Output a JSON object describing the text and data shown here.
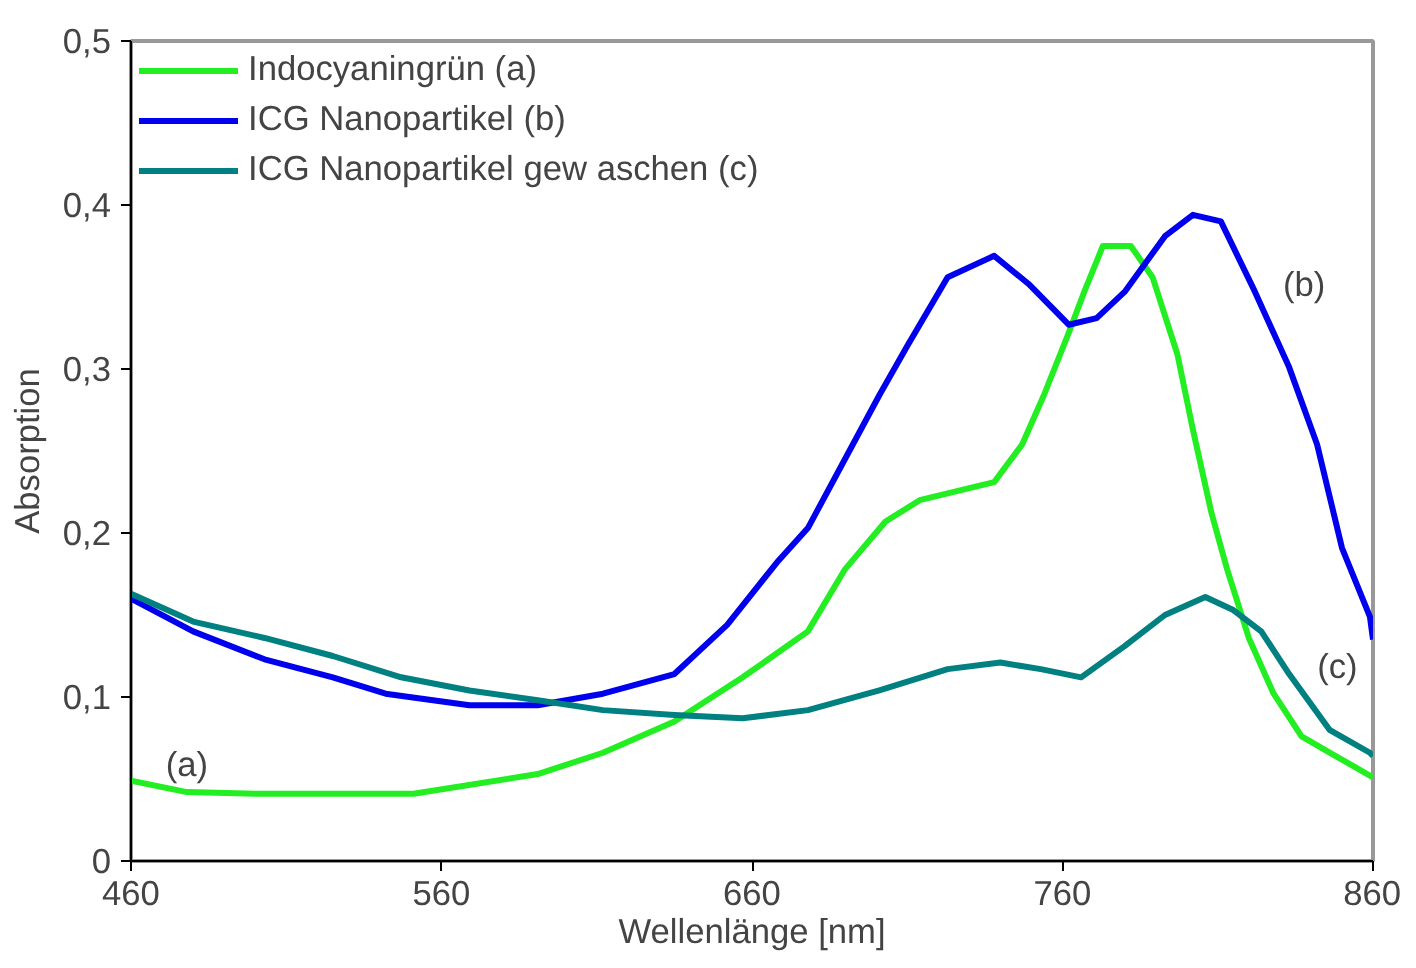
{
  "chart_data": {
    "type": "line",
    "xlabel": "Wellenlänge [nm]",
    "ylabel": "Absorption",
    "xlim": [
      460,
      860
    ],
    "ylim": [
      0,
      0.5
    ],
    "xticks": [
      460,
      560,
      660,
      760,
      860
    ],
    "yticks": [
      {
        "value": 0,
        "label": "0"
      },
      {
        "value": 0.1,
        "label": "0,1"
      },
      {
        "value": 0.2,
        "label": "0,2"
      },
      {
        "value": 0.3,
        "label": "0,3"
      },
      {
        "value": 0.4,
        "label": "0,4"
      },
      {
        "value": 0.5,
        "label": "0,5"
      }
    ],
    "grid": false,
    "legend": "top left",
    "marker": "none",
    "line_style": "solid",
    "series": [
      {
        "name": "Indocyaningrün (a)",
        "color": "#22ee22",
        "x": [
          460,
          478,
          500,
          520,
          551,
          591,
          612,
          635,
          657,
          678,
          690,
          703,
          714,
          738,
          747,
          754,
          762,
          767,
          773,
          782,
          789,
          797,
          802,
          808,
          813,
          820,
          828,
          837,
          848,
          860
        ],
        "values": [
          0.049,
          0.042,
          0.041,
          0.041,
          0.041,
          0.053,
          0.066,
          0.085,
          0.112,
          0.14,
          0.178,
          0.207,
          0.22,
          0.231,
          0.254,
          0.284,
          0.322,
          0.347,
          0.375,
          0.375,
          0.356,
          0.309,
          0.263,
          0.212,
          0.178,
          0.136,
          0.102,
          0.076,
          0.064,
          0.051
        ]
      },
      {
        "name": "ICG Nanopartikel (b)",
        "color": "#0000ee",
        "x": [
          460,
          480,
          503,
          525,
          542,
          569,
          591,
          612,
          635,
          652,
          668,
          678,
          701,
          710,
          723,
          738,
          749,
          762,
          771,
          780,
          793,
          802,
          811,
          822,
          833,
          842,
          850,
          859,
          860
        ],
        "values": [
          0.16,
          0.14,
          0.123,
          0.112,
          0.102,
          0.095,
          0.095,
          0.102,
          0.114,
          0.144,
          0.182,
          0.203,
          0.284,
          0.314,
          0.356,
          0.369,
          0.352,
          0.327,
          0.331,
          0.347,
          0.381,
          0.394,
          0.39,
          0.347,
          0.301,
          0.254,
          0.191,
          0.149,
          0.135
        ]
      },
      {
        "name": "ICG Nanopartikel gew aschen (c)",
        "color": "#008080",
        "x": [
          460,
          480,
          503,
          525,
          547,
          569,
          591,
          612,
          635,
          657,
          678,
          701,
          723,
          740,
          753,
          766,
          780,
          793,
          806,
          815,
          824,
          833,
          846,
          859,
          860
        ],
        "values": [
          0.163,
          0.146,
          0.136,
          0.125,
          0.112,
          0.104,
          0.098,
          0.092,
          0.089,
          0.087,
          0.092,
          0.104,
          0.117,
          0.121,
          0.117,
          0.112,
          0.131,
          0.15,
          0.161,
          0.153,
          0.14,
          0.114,
          0.08,
          0.066,
          0.064
        ]
      }
    ],
    "annotations": [
      "(a)",
      "(b)",
      "(c)"
    ]
  }
}
